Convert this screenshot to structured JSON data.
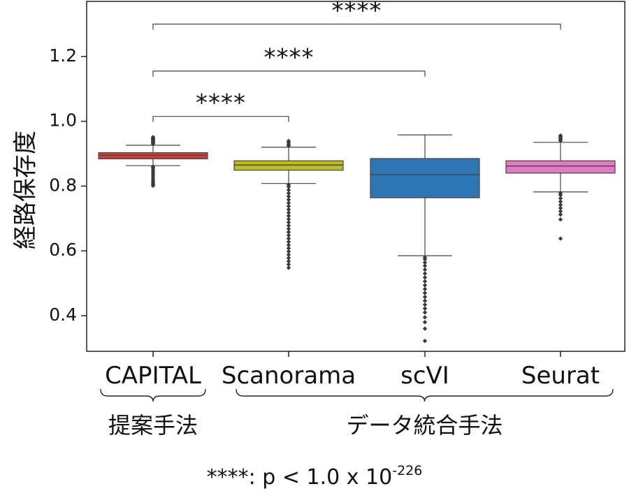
{
  "chart_data": {
    "type": "box",
    "ylabel": "経路保存度",
    "ylim": [
      0.29,
      1.37
    ],
    "yticks": [
      "0.4",
      "0.6",
      "0.8",
      "1.0",
      "1.2"
    ],
    "categories": [
      "CAPITAL",
      "Scanorama",
      "scVI",
      "Seurat"
    ],
    "boxes": [
      {
        "name": "CAPITAL",
        "color": "#d0403a",
        "q1": 0.884,
        "median": 0.895,
        "q3": 0.903,
        "whisker_low": 0.863,
        "whisker_high": 0.926,
        "outliers": [
          0.801,
          0.805,
          0.81,
          0.815,
          0.82,
          0.826,
          0.832,
          0.838,
          0.844,
          0.85,
          0.856,
          0.86,
          0.93,
          0.933,
          0.936,
          0.939,
          0.942,
          0.945,
          0.948,
          0.951
        ]
      },
      {
        "name": "Scanorama",
        "color": "#bcbc25",
        "q1": 0.849,
        "median": 0.865,
        "q3": 0.878,
        "whisker_low": 0.808,
        "whisker_high": 0.92,
        "outliers": [
          0.548,
          0.558,
          0.568,
          0.578,
          0.588,
          0.598,
          0.608,
          0.618,
          0.628,
          0.638,
          0.648,
          0.658,
          0.668,
          0.678,
          0.688,
          0.698,
          0.708,
          0.718,
          0.728,
          0.738,
          0.748,
          0.758,
          0.768,
          0.778,
          0.788,
          0.798,
          0.804,
          0.924,
          0.929,
          0.934,
          0.939
        ]
      },
      {
        "name": "scVI",
        "color": "#2f77b4",
        "q1": 0.764,
        "median": 0.835,
        "q3": 0.885,
        "whisker_low": 0.585,
        "whisker_high": 0.958,
        "outliers": [
          0.322,
          0.36,
          0.38,
          0.395,
          0.41,
          0.422,
          0.434,
          0.446,
          0.458,
          0.47,
          0.482,
          0.494,
          0.506,
          0.518,
          0.53,
          0.542,
          0.554,
          0.564,
          0.574,
          0.58
        ]
      },
      {
        "name": "Seurat",
        "color": "#e27ac3",
        "q1": 0.84,
        "median": 0.862,
        "q3": 0.878,
        "whisker_low": 0.782,
        "whisker_high": 0.935,
        "outliers": [
          0.638,
          0.697,
          0.712,
          0.722,
          0.732,
          0.742,
          0.752,
          0.762,
          0.772,
          0.778,
          0.94,
          0.944,
          0.948,
          0.952,
          0.956
        ]
      }
    ],
    "significance": [
      {
        "from": "CAPITAL",
        "to": "Scanorama",
        "y": 1.015,
        "label": "****"
      },
      {
        "from": "CAPITAL",
        "to": "scVI",
        "y": 1.155,
        "label": "****"
      },
      {
        "from": "CAPITAL",
        "to": "Seurat",
        "y": 1.3,
        "label": "****"
      }
    ],
    "groups": [
      {
        "label": "提案手法",
        "from": "CAPITAL",
        "to": "CAPITAL"
      },
      {
        "label": "データ統合手法",
        "from": "Scanorama",
        "to": "Seurat"
      }
    ],
    "footnote": {
      "prefix": "****: p < 1.0 x 10",
      "exponent": "-226"
    }
  }
}
